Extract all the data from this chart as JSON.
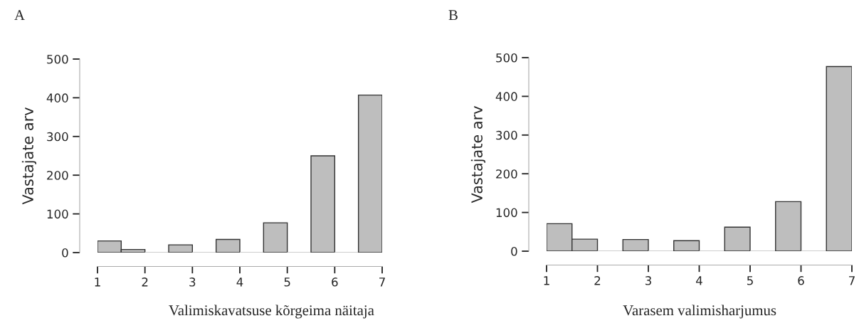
{
  "chart_data": [
    {
      "type": "histogram",
      "title": "A",
      "xlabel": "Valimiskavatsuse kõrgeima näitaja",
      "ylabel": "Vastajate arv",
      "color": "#bebebe",
      "bins": [
        1,
        1.5,
        2,
        2.5,
        3,
        3.5,
        4,
        4.5,
        5,
        5.5,
        6,
        6.5,
        7
      ],
      "values": [
        30,
        8,
        0,
        20,
        0,
        34,
        0,
        77,
        0,
        250,
        0,
        407
      ],
      "xlim": [
        1,
        7
      ],
      "xticks": [
        1,
        2,
        3,
        4,
        5,
        6,
        7
      ],
      "ylim": [
        0,
        500
      ],
      "yticks": [
        0,
        100,
        200,
        300,
        400,
        500
      ],
      "grid": false,
      "legend": false
    },
    {
      "type": "histogram",
      "title": "B",
      "xlabel": "Varasem valimisharjumus",
      "ylabel": "Vastajate arv",
      "color": "#bebebe",
      "bins": [
        1,
        1.5,
        2,
        2.5,
        3,
        3.5,
        4,
        4.5,
        5,
        5.5,
        6,
        6.5,
        7
      ],
      "values": [
        71,
        31,
        0,
        30,
        0,
        27,
        0,
        62,
        0,
        128,
        0,
        477
      ],
      "xlim": [
        1,
        7
      ],
      "xticks": [
        1,
        2,
        3,
        4,
        5,
        6,
        7
      ],
      "ylim": [
        0,
        500
      ],
      "yticks": [
        0,
        100,
        200,
        300,
        400,
        500
      ],
      "grid": false,
      "legend": false
    }
  ]
}
